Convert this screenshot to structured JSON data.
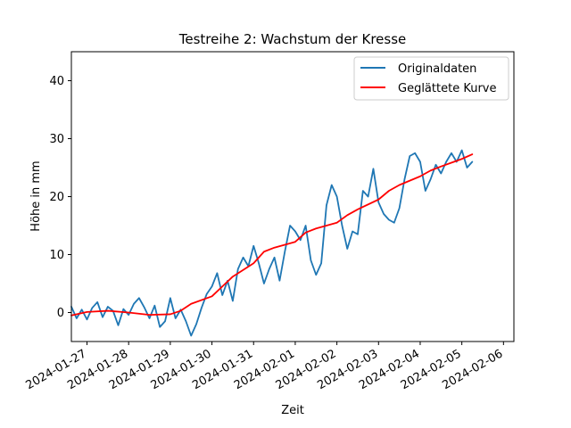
{
  "chart_data": {
    "type": "line",
    "title": "Testreihe 2: Wachstum der Kresse",
    "xlabel": "Zeit",
    "ylabel": "Höhe in mm",
    "x_type": "datetime",
    "xlim": [
      "2024-01-26 15:00",
      "2024-02-06 06:00"
    ],
    "ylim": [
      -5,
      45
    ],
    "yticks": [
      0,
      10,
      20,
      30,
      40
    ],
    "xticks": [
      "2024-01-27",
      "2024-01-28",
      "2024-01-29",
      "2024-01-30",
      "2024-01-31",
      "2024-02-01",
      "2024-02-02",
      "2024-02-03",
      "2024-02-04",
      "2024-02-05",
      "2024-02-06"
    ],
    "grid": false,
    "legend_position": "top-right",
    "series": [
      {
        "name": "Originaldaten",
        "color": "#1f77b4",
        "points": [
          [
            "2024-01-26 15:00",
            1.0
          ],
          [
            "2024-01-26 18:00",
            -1.0
          ],
          [
            "2024-01-26 21:00",
            0.5
          ],
          [
            "2024-01-27 00:00",
            -1.2
          ],
          [
            "2024-01-27 03:00",
            0.8
          ],
          [
            "2024-01-27 06:00",
            1.8
          ],
          [
            "2024-01-27 09:00",
            -0.8
          ],
          [
            "2024-01-27 12:00",
            1.0
          ],
          [
            "2024-01-27 15:00",
            0.3
          ],
          [
            "2024-01-27 18:00",
            -2.2
          ],
          [
            "2024-01-27 21:00",
            0.6
          ],
          [
            "2024-01-28 00:00",
            -0.4
          ],
          [
            "2024-01-28 03:00",
            1.5
          ],
          [
            "2024-01-28 06:00",
            2.5
          ],
          [
            "2024-01-28 09:00",
            0.9
          ],
          [
            "2024-01-28 12:00",
            -1.0
          ],
          [
            "2024-01-28 15:00",
            1.2
          ],
          [
            "2024-01-28 18:00",
            -2.5
          ],
          [
            "2024-01-28 21:00",
            -1.5
          ],
          [
            "2024-01-29 00:00",
            2.5
          ],
          [
            "2024-01-29 03:00",
            -1.0
          ],
          [
            "2024-01-29 06:00",
            0.5
          ],
          [
            "2024-01-29 09:00",
            -1.5
          ],
          [
            "2024-01-29 12:00",
            -4.0
          ],
          [
            "2024-01-29 15:00",
            -2.0
          ],
          [
            "2024-01-29 18:00",
            0.8
          ],
          [
            "2024-01-29 21:00",
            3.2
          ],
          [
            "2024-01-30 00:00",
            4.5
          ],
          [
            "2024-01-30 03:00",
            6.8
          ],
          [
            "2024-01-30 06:00",
            3.0
          ],
          [
            "2024-01-30 09:00",
            5.5
          ],
          [
            "2024-01-30 12:00",
            2.0
          ],
          [
            "2024-01-30 15:00",
            7.5
          ],
          [
            "2024-01-30 18:00",
            9.5
          ],
          [
            "2024-01-30 21:00",
            8.0
          ],
          [
            "2024-01-31 00:00",
            11.5
          ],
          [
            "2024-01-31 03:00",
            8.5
          ],
          [
            "2024-01-31 06:00",
            5.0
          ],
          [
            "2024-01-31 09:00",
            7.5
          ],
          [
            "2024-01-31 12:00",
            9.5
          ],
          [
            "2024-01-31 15:00",
            5.5
          ],
          [
            "2024-01-31 18:00",
            10.5
          ],
          [
            "2024-01-31 21:00",
            15.0
          ],
          [
            "2024-02-01 00:00",
            14.0
          ],
          [
            "2024-02-01 03:00",
            12.5
          ],
          [
            "2024-02-01 06:00",
            15.0
          ],
          [
            "2024-02-01 09:00",
            9.0
          ],
          [
            "2024-02-01 12:00",
            6.5
          ],
          [
            "2024-02-01 15:00",
            8.5
          ],
          [
            "2024-02-01 18:00",
            18.5
          ],
          [
            "2024-02-01 21:00",
            22.0
          ],
          [
            "2024-02-02 00:00",
            20.0
          ],
          [
            "2024-02-02 03:00",
            15.0
          ],
          [
            "2024-02-02 06:00",
            11.0
          ],
          [
            "2024-02-02 09:00",
            14.0
          ],
          [
            "2024-02-02 12:00",
            13.5
          ],
          [
            "2024-02-02 15:00",
            21.0
          ],
          [
            "2024-02-02 18:00",
            20.0
          ],
          [
            "2024-02-02 21:00",
            24.8
          ],
          [
            "2024-02-03 00:00",
            19.0
          ],
          [
            "2024-02-03 03:00",
            17.0
          ],
          [
            "2024-02-03 06:00",
            16.0
          ],
          [
            "2024-02-03 09:00",
            15.5
          ],
          [
            "2024-02-03 12:00",
            18.0
          ],
          [
            "2024-02-03 15:00",
            23.0
          ],
          [
            "2024-02-03 18:00",
            27.0
          ],
          [
            "2024-02-03 21:00",
            27.5
          ],
          [
            "2024-02-04 00:00",
            26.0
          ],
          [
            "2024-02-04 03:00",
            21.0
          ],
          [
            "2024-02-04 06:00",
            23.0
          ],
          [
            "2024-02-04 09:00",
            25.5
          ],
          [
            "2024-02-04 12:00",
            24.0
          ],
          [
            "2024-02-04 15:00",
            26.0
          ],
          [
            "2024-02-04 18:00",
            27.5
          ],
          [
            "2024-02-04 21:00",
            26.0
          ],
          [
            "2024-02-05 00:00",
            28.0
          ],
          [
            "2024-02-05 03:00",
            25.0
          ],
          [
            "2024-02-05 06:00",
            26.0
          ]
        ]
      },
      {
        "name": "Geglättete Kurve",
        "color": "#ff0000",
        "points": [
          [
            "2024-01-26 15:00",
            -0.5
          ],
          [
            "2024-01-27 00:00",
            0.1
          ],
          [
            "2024-01-27 12:00",
            0.3
          ],
          [
            "2024-01-28 00:00",
            0.0
          ],
          [
            "2024-01-28 12:00",
            -0.4
          ],
          [
            "2024-01-29 00:00",
            -0.3
          ],
          [
            "2024-01-29 06:00",
            0.3
          ],
          [
            "2024-01-29 12:00",
            1.5
          ],
          [
            "2024-01-30 00:00",
            2.8
          ],
          [
            "2024-01-30 06:00",
            4.5
          ],
          [
            "2024-01-30 12:00",
            6.2
          ],
          [
            "2024-01-31 00:00",
            8.5
          ],
          [
            "2024-01-31 06:00",
            10.5
          ],
          [
            "2024-01-31 12:00",
            11.2
          ],
          [
            "2024-02-01 00:00",
            12.2
          ],
          [
            "2024-02-01 06:00",
            13.8
          ],
          [
            "2024-02-01 12:00",
            14.5
          ],
          [
            "2024-02-02 00:00",
            15.5
          ],
          [
            "2024-02-02 06:00",
            16.8
          ],
          [
            "2024-02-02 12:00",
            17.8
          ],
          [
            "2024-02-03 00:00",
            19.5
          ],
          [
            "2024-02-03 06:00",
            21.0
          ],
          [
            "2024-02-03 12:00",
            22.0
          ],
          [
            "2024-02-04 00:00",
            23.5
          ],
          [
            "2024-02-04 06:00",
            24.5
          ],
          [
            "2024-02-04 12:00",
            25.2
          ],
          [
            "2024-02-05 00:00",
            26.5
          ],
          [
            "2024-02-05 06:00",
            27.3
          ]
        ]
      }
    ]
  }
}
